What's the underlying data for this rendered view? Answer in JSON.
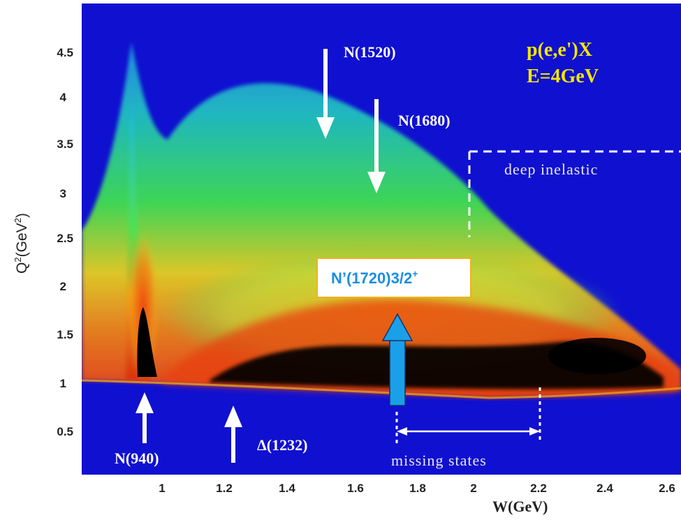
{
  "chart_data": {
    "type": "heatmap",
    "title": "",
    "reaction": "p(e,e')X",
    "beam": "E=4GeV",
    "xlabel": "W(GeV)",
    "ylabel_prefix": "Q",
    "ylabel_sup": "2",
    "ylabel_suffix": "(GeV",
    "ylabel_sup2": "2",
    "ylabel_close": ")",
    "xlim": [
      0.75,
      2.65
    ],
    "ylim": [
      0.05,
      4.9
    ],
    "x_ticks": [
      "1",
      "1.2",
      "1.4",
      "1.6",
      "1.8",
      "2",
      "2.2",
      "2.4",
      "2.6"
    ],
    "y_ticks": [
      "0.5",
      "1",
      "1.5",
      "2",
      "2.5",
      "3",
      "3.5",
      "4",
      "4.5"
    ],
    "resonances": [
      {
        "label": "N(1520)",
        "W": 1.52,
        "arrow": "down"
      },
      {
        "label": "N(1680)",
        "W": 1.68,
        "arrow": "down"
      },
      {
        "label": "N(940)",
        "W": 0.94,
        "arrow": "up"
      },
      {
        "label": "Δ(1232)",
        "W": 1.23,
        "arrow": "up"
      }
    ],
    "regions": {
      "deep_inelastic": {
        "label": "deep inelastic",
        "W_min": 2.0,
        "Q2_min": 2.55
      },
      "missing_states": {
        "label": "missing states",
        "W_range": [
          1.74,
          2.21
        ]
      }
    },
    "callout": {
      "label": "N’(1720)3/2",
      "sup": "+",
      "W": 1.72
    },
    "colors": {
      "background": "#1010d0",
      "low": "#20b8d8",
      "mid": "#30e050",
      "high": "#f0d020",
      "higher": "#e84010",
      "peak": "#000000",
      "callout_border": "#f0b020",
      "callout_arrow": "#1aa0e8",
      "title": "#f2e600"
    },
    "grid": false
  }
}
